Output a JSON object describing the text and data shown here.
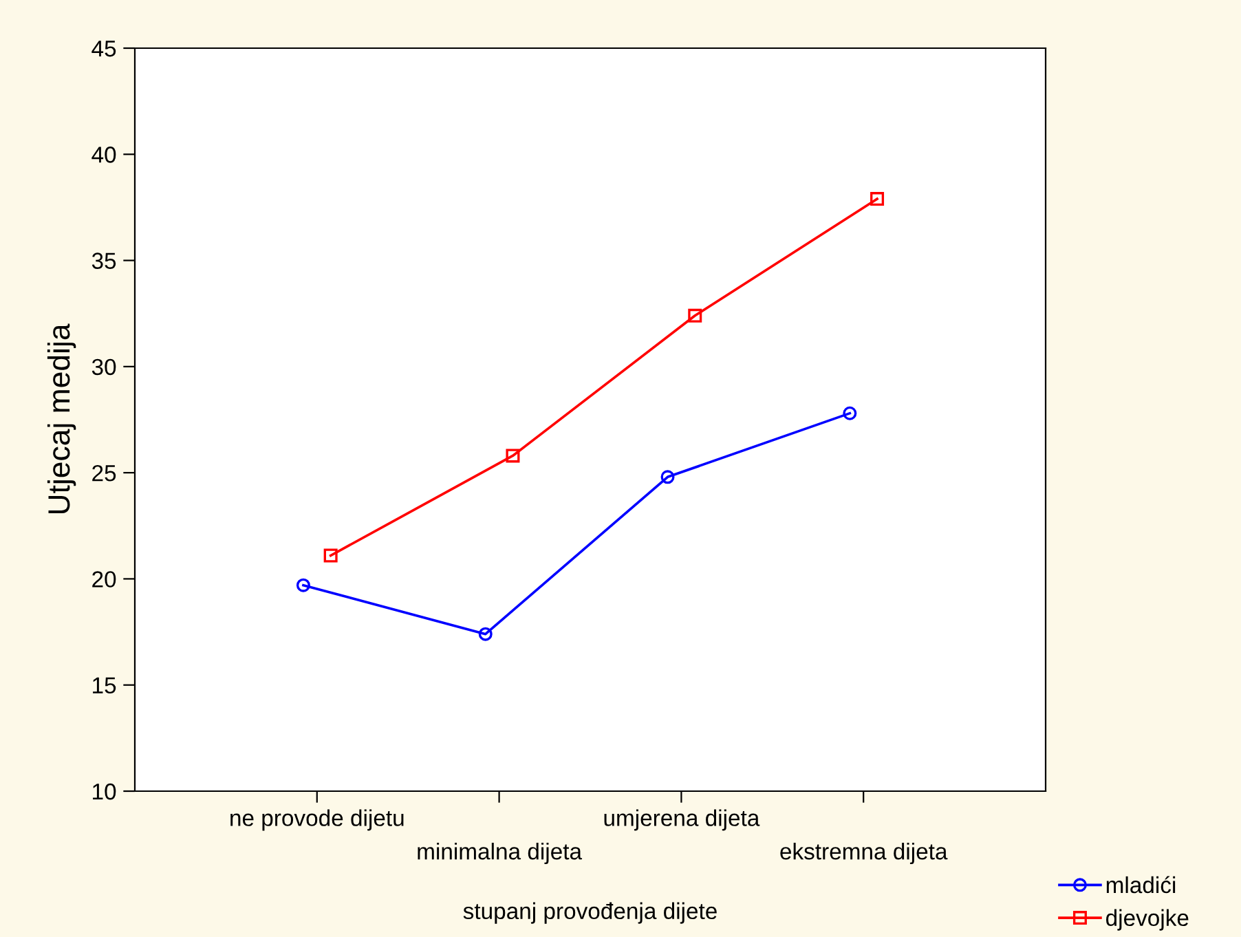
{
  "chart_data": {
    "type": "line",
    "xlabel": "stupanj provođenja dijete",
    "ylabel": "Utjecaj medija",
    "categories": [
      "ne provode dijetu",
      "minimalna dijeta",
      "umjerena dijeta",
      "ekstremna dijeta"
    ],
    "series": [
      {
        "name": "mladići",
        "color": "#0000ff",
        "marker": "circle",
        "values": [
          19.7,
          17.4,
          24.8,
          27.8
        ]
      },
      {
        "name": "djevojke",
        "color": "#ff0000",
        "marker": "square",
        "values": [
          21.1,
          25.8,
          32.4,
          37.9
        ]
      }
    ],
    "ylim": [
      10,
      45
    ],
    "yticks": [
      10,
      15,
      20,
      25,
      30,
      35,
      40,
      45
    ],
    "grid": false,
    "legend": "bottom right",
    "line_style": "solid"
  }
}
